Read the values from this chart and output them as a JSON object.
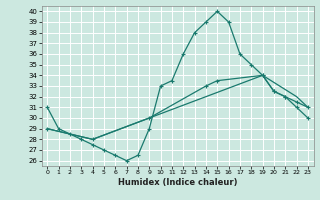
{
  "title": "",
  "xlabel": "Humidex (Indice chaleur)",
  "bg_color": "#cce8e0",
  "grid_color": "#ffffff",
  "line_color": "#1a7a6e",
  "xlim": [
    -0.5,
    23.5
  ],
  "ylim": [
    25.5,
    40.5
  ],
  "xticks": [
    0,
    1,
    2,
    3,
    4,
    5,
    6,
    7,
    8,
    9,
    10,
    11,
    12,
    13,
    14,
    15,
    16,
    17,
    18,
    19,
    20,
    21,
    22,
    23
  ],
  "yticks": [
    26,
    27,
    28,
    29,
    30,
    31,
    32,
    33,
    34,
    35,
    36,
    37,
    38,
    39,
    40
  ],
  "curve1_x": [
    0,
    1,
    2,
    3,
    4,
    5,
    6,
    7,
    8,
    9,
    10,
    11,
    12,
    13,
    14,
    15,
    16,
    17,
    18,
    19,
    20,
    21,
    22,
    23
  ],
  "curve1_y": [
    31,
    29,
    28.5,
    28,
    27.5,
    27,
    26.5,
    26,
    26.5,
    29,
    33,
    33.5,
    36,
    38,
    39,
    40,
    39,
    36,
    35,
    34,
    32.5,
    32,
    31,
    30
  ],
  "curve2_x": [
    0,
    4,
    9,
    14,
    15,
    19,
    20,
    21,
    22,
    23
  ],
  "curve2_y": [
    29,
    28,
    30,
    33,
    33.5,
    34,
    32.5,
    32,
    31.5,
    31
  ],
  "curve3_x": [
    0,
    4,
    9,
    14,
    19,
    22,
    23
  ],
  "curve3_y": [
    29,
    28,
    30,
    32,
    34,
    32,
    31
  ]
}
